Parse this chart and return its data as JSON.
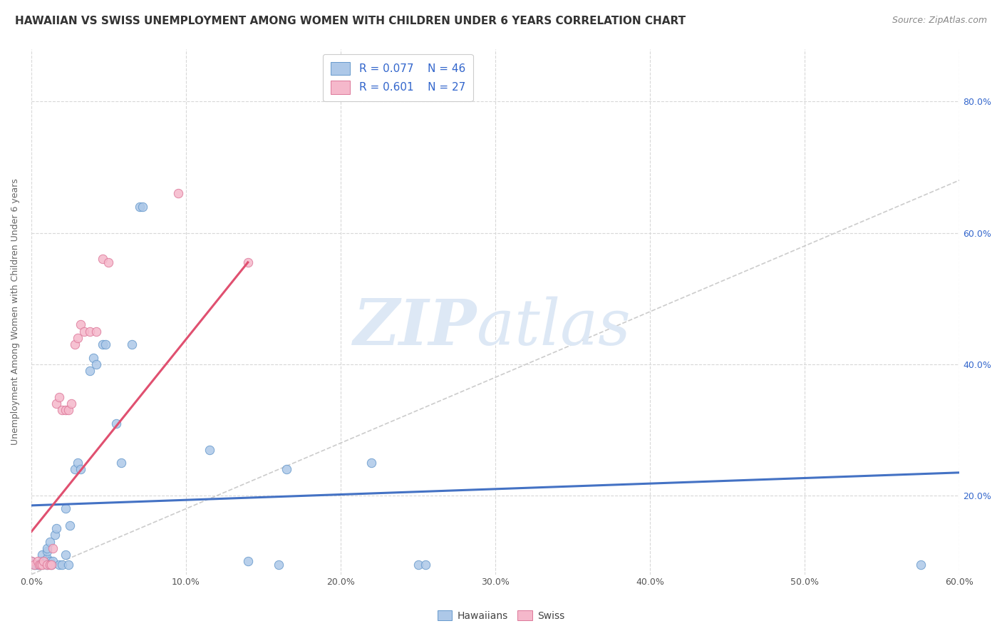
{
  "title": "HAWAIIAN VS SWISS UNEMPLOYMENT AMONG WOMEN WITH CHILDREN UNDER 6 YEARS CORRELATION CHART",
  "source": "Source: ZipAtlas.com",
  "xlim": [
    0.0,
    0.6
  ],
  "ylim": [
    0.08,
    0.88
  ],
  "yticks": [
    0.2,
    0.4,
    0.6,
    0.8
  ],
  "xticks": [
    0.0,
    0.1,
    0.2,
    0.3,
    0.4,
    0.5,
    0.6
  ],
  "legend_r1": "R = 0.077",
  "legend_n1": "N = 46",
  "legend_r2": "R = 0.601",
  "legend_n2": "N = 27",
  "hawaiian_color": "#adc8e8",
  "hawaiian_edge": "#6699cc",
  "swiss_color": "#f5b8cb",
  "swiss_edge": "#dd7799",
  "hawaiian_scatter": [
    [
      0.0,
      0.1
    ],
    [
      0.002,
      0.095
    ],
    [
      0.003,
      0.095
    ],
    [
      0.004,
      0.095
    ],
    [
      0.005,
      0.095
    ],
    [
      0.006,
      0.095
    ],
    [
      0.007,
      0.1
    ],
    [
      0.007,
      0.11
    ],
    [
      0.008,
      0.1
    ],
    [
      0.01,
      0.095
    ],
    [
      0.01,
      0.105
    ],
    [
      0.01,
      0.115
    ],
    [
      0.01,
      0.12
    ],
    [
      0.012,
      0.1
    ],
    [
      0.012,
      0.13
    ],
    [
      0.013,
      0.095
    ],
    [
      0.014,
      0.1
    ],
    [
      0.015,
      0.14
    ],
    [
      0.016,
      0.15
    ],
    [
      0.018,
      0.095
    ],
    [
      0.02,
      0.095
    ],
    [
      0.022,
      0.11
    ],
    [
      0.022,
      0.18
    ],
    [
      0.024,
      0.095
    ],
    [
      0.025,
      0.155
    ],
    [
      0.028,
      0.24
    ],
    [
      0.03,
      0.25
    ],
    [
      0.032,
      0.24
    ],
    [
      0.038,
      0.39
    ],
    [
      0.04,
      0.41
    ],
    [
      0.042,
      0.4
    ],
    [
      0.046,
      0.43
    ],
    [
      0.048,
      0.43
    ],
    [
      0.055,
      0.31
    ],
    [
      0.058,
      0.25
    ],
    [
      0.065,
      0.43
    ],
    [
      0.07,
      0.64
    ],
    [
      0.072,
      0.64
    ],
    [
      0.115,
      0.27
    ],
    [
      0.14,
      0.1
    ],
    [
      0.16,
      0.095
    ],
    [
      0.165,
      0.24
    ],
    [
      0.22,
      0.25
    ],
    [
      0.25,
      0.095
    ],
    [
      0.255,
      0.095
    ],
    [
      0.575,
      0.095
    ]
  ],
  "swiss_scatter": [
    [
      0.0,
      0.1
    ],
    [
      0.002,
      0.095
    ],
    [
      0.004,
      0.1
    ],
    [
      0.005,
      0.095
    ],
    [
      0.006,
      0.095
    ],
    [
      0.007,
      0.095
    ],
    [
      0.008,
      0.1
    ],
    [
      0.01,
      0.095
    ],
    [
      0.012,
      0.095
    ],
    [
      0.013,
      0.095
    ],
    [
      0.014,
      0.12
    ],
    [
      0.016,
      0.34
    ],
    [
      0.018,
      0.35
    ],
    [
      0.02,
      0.33
    ],
    [
      0.022,
      0.33
    ],
    [
      0.024,
      0.33
    ],
    [
      0.026,
      0.34
    ],
    [
      0.028,
      0.43
    ],
    [
      0.03,
      0.44
    ],
    [
      0.032,
      0.46
    ],
    [
      0.034,
      0.45
    ],
    [
      0.038,
      0.45
    ],
    [
      0.042,
      0.45
    ],
    [
      0.046,
      0.56
    ],
    [
      0.05,
      0.555
    ],
    [
      0.095,
      0.66
    ],
    [
      0.14,
      0.555
    ]
  ],
  "hawaiian_reg_line": [
    [
      0.0,
      0.185
    ],
    [
      0.6,
      0.235
    ]
  ],
  "swiss_reg_line": [
    [
      0.0,
      0.145
    ],
    [
      0.14,
      0.555
    ]
  ],
  "diag_line": [
    [
      0.0,
      0.08
    ],
    [
      0.6,
      0.68
    ]
  ],
  "background_color": "#ffffff",
  "grid_color": "#d8d8d8",
  "title_color": "#333333",
  "axis_label_color": "#666666",
  "reg_color_hawaiian": "#4472c4",
  "reg_color_swiss": "#e05070",
  "diag_color": "#cccccc",
  "watermark_zip": "ZIP",
  "watermark_atlas": "atlas",
  "watermark_color": "#dde8f5"
}
